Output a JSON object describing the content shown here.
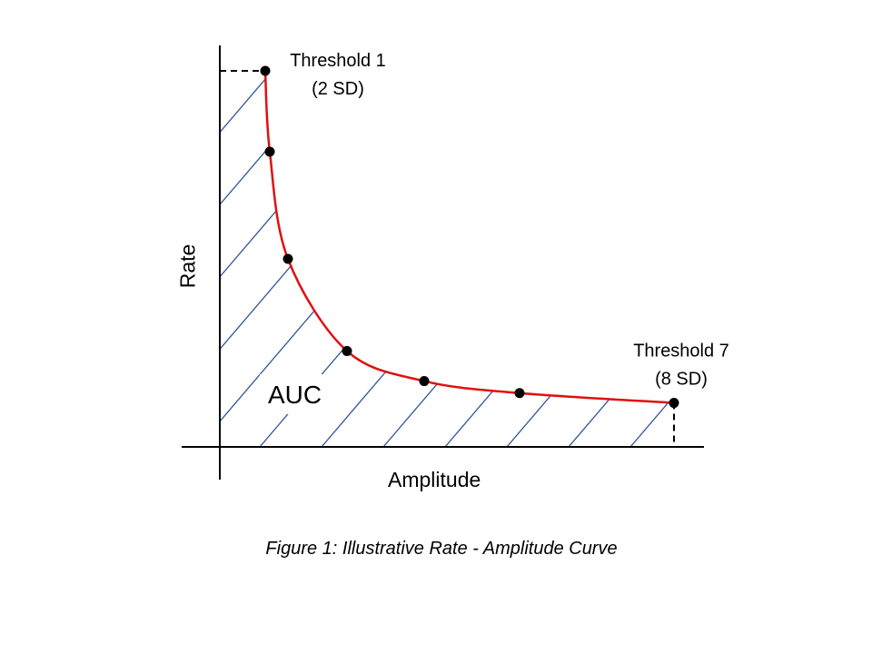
{
  "caption": "Figure 1: Illustrative Rate - Amplitude Curve",
  "chart_data": {
    "type": "line",
    "title": "",
    "xlabel": "Amplitude",
    "ylabel": "Rate",
    "area_label": "AUC",
    "grid": false,
    "ticks": false,
    "area_fill": "diagonal-hatch",
    "colors": {
      "curve": "#e01010",
      "hatch": "#2f5597",
      "points": "#000000",
      "axes": "#000000"
    },
    "points": [
      {
        "x": 0.1,
        "y": 1.0,
        "label": "Threshold 1",
        "sublabel": "(2 SD)"
      },
      {
        "x": 0.11,
        "y": 0.785
      },
      {
        "x": 0.15,
        "y": 0.5
      },
      {
        "x": 0.28,
        "y": 0.255
      },
      {
        "x": 0.45,
        "y": 0.175
      },
      {
        "x": 0.66,
        "y": 0.143
      },
      {
        "x": 1.0,
        "y": 0.117,
        "label": "Threshold 7",
        "sublabel": "(8 SD)"
      }
    ],
    "xlim": [
      0,
      1
    ],
    "ylim": [
      0,
      1
    ]
  }
}
